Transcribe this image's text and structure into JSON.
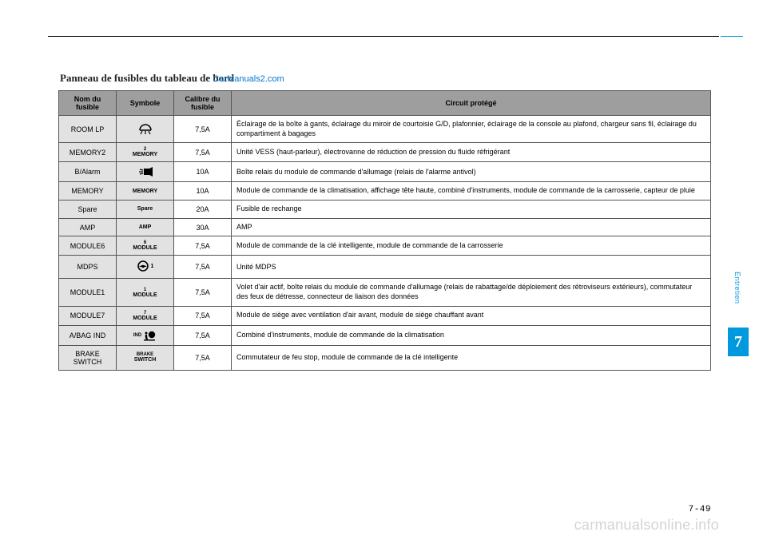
{
  "page": {
    "title_main": "Panneau de fusibles du tableau de bord",
    "title_overlay": "CarManuals2.com",
    "section_label": "Entretien",
    "chapter_number": "7",
    "page_number": "7-49",
    "watermark": "carmanualsonline.info"
  },
  "table": {
    "headers": {
      "col1": "Nom du fusible",
      "col2": "Symbole",
      "col3": "Calibre du fusible",
      "col4": "Circuit protégé"
    },
    "rows": [
      {
        "name": "ROOM LP",
        "symbol_type": "dome-light",
        "symbol_text": "",
        "calibre": "7,5A",
        "circuit": "Éclairage de la boîte à gants, éclairage du miroir de courtoisie G/D, plafonnier, éclairage de la console au plafond, chargeur sans fil, éclairage du compartiment à bagages"
      },
      {
        "name": "MEMORY2",
        "symbol_type": "text",
        "symbol_text": "2\nMEMORY",
        "calibre": "7,5A",
        "circuit": "Unité VESS (haut-parleur), électrovanne de réduction de pression du fluide réfrigérant"
      },
      {
        "name": "B/Alarm",
        "symbol_type": "alarm",
        "symbol_text": "",
        "calibre": "10A",
        "circuit": "Boîte relais du module de commande d'allumage (relais de l'alarme antivol)"
      },
      {
        "name": "MEMORY",
        "symbol_type": "text",
        "symbol_text": "MEMORY",
        "calibre": "10A",
        "circuit": "Module de commande de la climatisation, affichage tête haute, combiné d'instruments, module de commande de la carrosserie, capteur de pluie"
      },
      {
        "name": "Spare",
        "symbol_type": "text",
        "symbol_text": "Spare",
        "calibre": "20A",
        "circuit": "Fusible de rechange"
      },
      {
        "name": "AMP",
        "symbol_type": "text",
        "symbol_text": "AMP",
        "calibre": "30A",
        "circuit": "AMP"
      },
      {
        "name": "MODULE6",
        "symbol_type": "text",
        "symbol_text": "6\nMODULE",
        "calibre": "7,5A",
        "circuit": "Module de commande de la clé intelligente, module de commande de la carrosserie"
      },
      {
        "name": "MDPS",
        "symbol_type": "mdps",
        "symbol_text": "1",
        "calibre": "7,5A",
        "circuit": "Unité MDPS"
      },
      {
        "name": "MODULE1",
        "symbol_type": "text",
        "symbol_text": "1\nMODULE",
        "calibre": "7,5A",
        "circuit": "Volet d'air actif, boîte relais du module de commande d'allumage (relais de rabattage/de déploiement des rétroviseurs extérieurs), commutateur des feux de détresse, connecteur de liaison des données"
      },
      {
        "name": "MODULE7",
        "symbol_type": "text",
        "symbol_text": "7\nMODULE",
        "calibre": "7,5A",
        "circuit": "Module de siège avec ventilation d'air avant, module de siège chauffant avant"
      },
      {
        "name": "A/BAG IND",
        "symbol_type": "airbag",
        "symbol_text": "IND",
        "calibre": "7,5A",
        "circuit": "Combiné d'instruments, module de commande de la climatisation"
      },
      {
        "name": "BRAKE SWITCH",
        "symbol_type": "text",
        "symbol_text": "BRAKE\nSWITCH",
        "calibre": "7,5A",
        "circuit": "Commutateur de feu stop, module de commande de la clé intelligente"
      }
    ]
  }
}
